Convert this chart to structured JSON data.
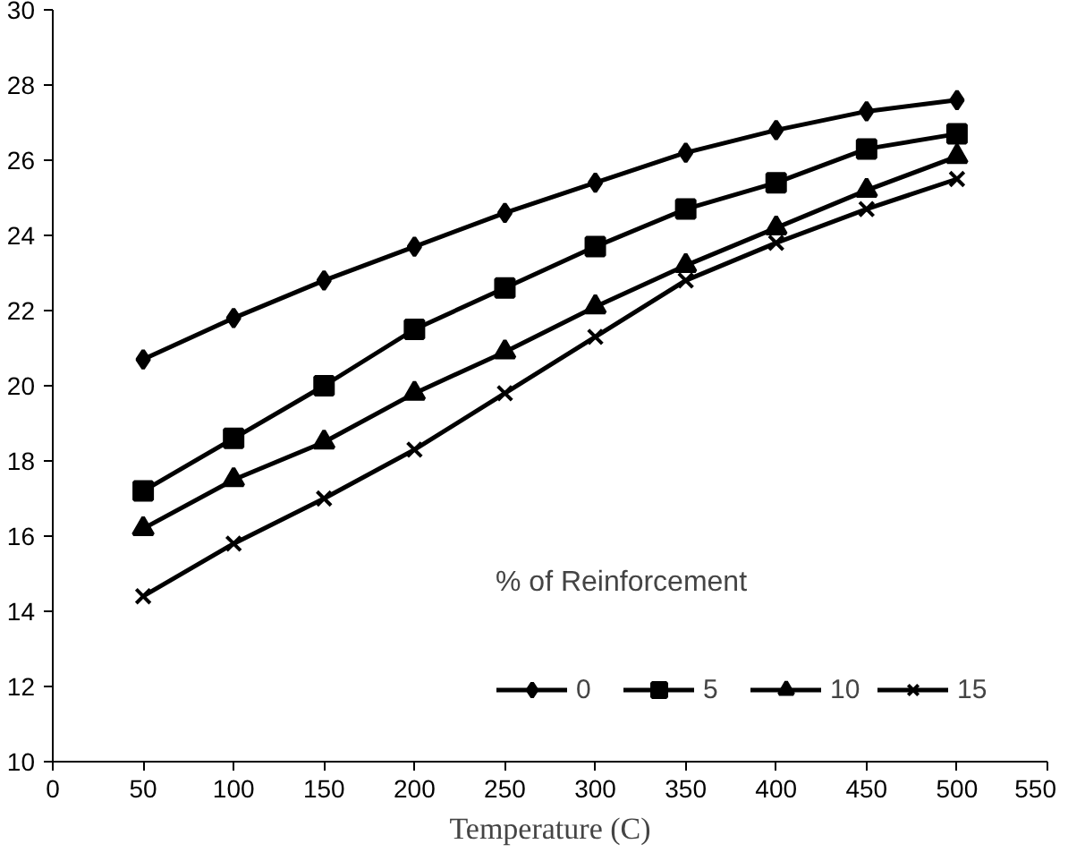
{
  "chart_data": {
    "type": "line",
    "xlabel": "Temperature (C)",
    "legend_title": "% of Reinforcement",
    "x": [
      50,
      100,
      150,
      200,
      250,
      300,
      350,
      400,
      450,
      500
    ],
    "xlim": [
      0,
      550
    ],
    "xticks": [
      0,
      50,
      100,
      150,
      200,
      250,
      300,
      350,
      400,
      450,
      500,
      550
    ],
    "ylim": [
      10,
      30
    ],
    "yticks": [
      10,
      12,
      14,
      16,
      18,
      20,
      22,
      24,
      26,
      28,
      30
    ],
    "grid": false,
    "legend": "bottom right",
    "line_style": "solid",
    "series": [
      {
        "name": "0",
        "color": "#000000",
        "marker": "diamond",
        "values": [
          20.7,
          21.8,
          22.8,
          23.7,
          24.6,
          25.4,
          26.2,
          26.8,
          27.3,
          27.6
        ]
      },
      {
        "name": "5",
        "color": "#000000",
        "marker": "square",
        "values": [
          17.2,
          18.6,
          20.0,
          21.5,
          22.6,
          23.7,
          24.7,
          25.4,
          26.3,
          26.7
        ]
      },
      {
        "name": "10",
        "color": "#000000",
        "marker": "triangle",
        "values": [
          16.2,
          17.5,
          18.5,
          19.8,
          20.9,
          22.1,
          23.2,
          24.2,
          25.2,
          26.1
        ]
      },
      {
        "name": "15",
        "color": "#000000",
        "marker": "cross",
        "values": [
          14.4,
          15.8,
          17.0,
          18.3,
          19.8,
          21.3,
          22.8,
          23.8,
          24.7,
          25.5
        ]
      }
    ]
  }
}
